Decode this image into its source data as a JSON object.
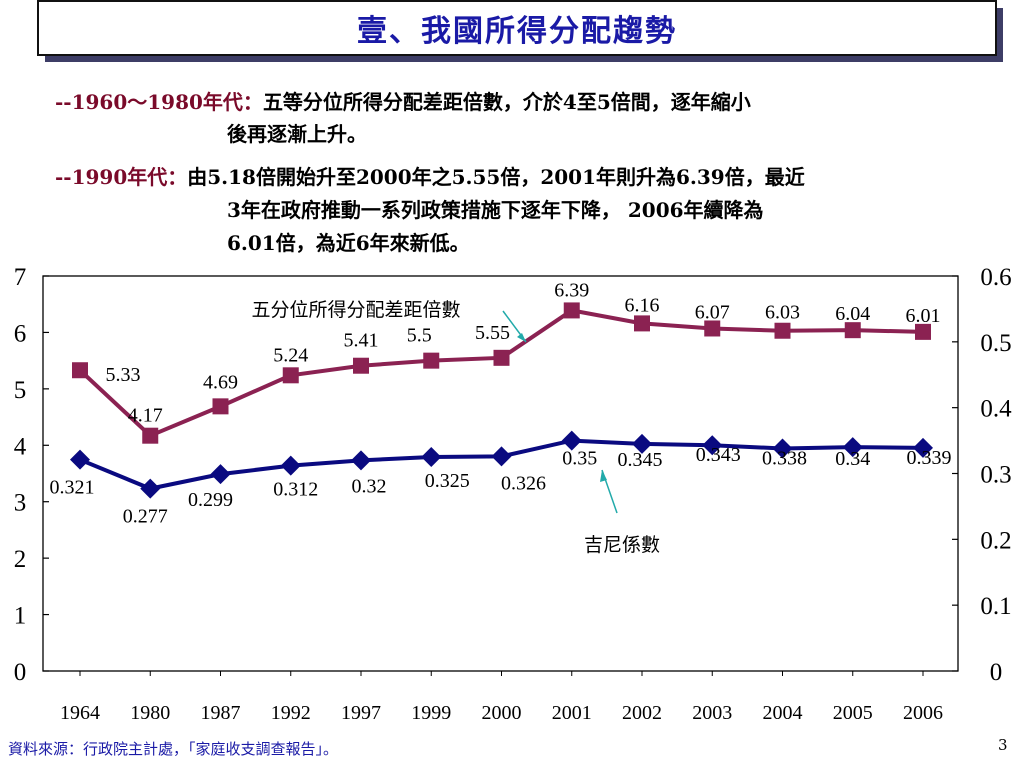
{
  "title": "壹、我國所得分配趨勢",
  "bullets": [
    {
      "label": "--1960～1980年代：",
      "lines": [
        "五等分位所得分配差距倍數，介於4至5倍間，逐年縮小",
        "後再逐漸上升。"
      ]
    },
    {
      "label": "--1990年代：",
      "lines": [
        "由5.18倍開始升至2000年之5.55倍，2001年則升為6.39倍，最近",
        "3年在政府推動一系列政策措施下逐年下降，  2006年續降為",
        "6.01倍，為近6年來新低。"
      ]
    }
  ],
  "chart_data": {
    "type": "line",
    "categories": [
      "1964",
      "1980",
      "1987",
      "1992",
      "1997",
      "1999",
      "2000",
      "2001",
      "2002",
      "2003",
      "2004",
      "2005",
      "2006"
    ],
    "series": [
      {
        "name": "五分位所得分配差距倍數",
        "axis": "left",
        "color": "#8b2252",
        "marker": "square",
        "values": [
          5.33,
          4.17,
          4.69,
          5.24,
          5.41,
          5.5,
          5.55,
          6.39,
          6.16,
          6.07,
          6.03,
          6.04,
          6.01
        ],
        "labels": [
          "5.33",
          "4.17",
          "4.69",
          "5.24",
          "5.41",
          "5.5",
          "5.55",
          "6.39",
          "6.16",
          "6.07",
          "6.03",
          "6.04",
          "6.01"
        ]
      },
      {
        "name": "吉尼係數",
        "axis": "right",
        "color": "#0a0a80",
        "marker": "diamond",
        "values": [
          0.321,
          0.277,
          0.299,
          0.312,
          0.32,
          0.325,
          0.326,
          0.35,
          0.345,
          0.343,
          0.338,
          0.34,
          0.339
        ],
        "labels": [
          "0.321",
          "0.277",
          "0.299",
          "0.312",
          "0.32",
          "0.325",
          "0.326",
          "0.35",
          "0.345",
          "0.343",
          "0.338",
          "0.34",
          "0.339"
        ]
      }
    ],
    "left_axis": {
      "min": 0,
      "max": 7,
      "ticks": [
        "0",
        "1",
        "2",
        "3",
        "4",
        "5",
        "6",
        "7"
      ]
    },
    "right_axis": {
      "min": 0,
      "max": 0.6,
      "ticks": [
        "0",
        "0.1",
        "0.2",
        "0.3",
        "0.4",
        "0.5",
        "0.6"
      ]
    },
    "annotations": [
      "五分位所得分配差距倍數",
      "吉尼係數"
    ],
    "colors": {
      "arrow": "#22aaaa",
      "axis": "#000000"
    }
  },
  "footer": {
    "source": "資料來源：行政院主計處，「家庭收支調查報告」。",
    "page": "3"
  }
}
